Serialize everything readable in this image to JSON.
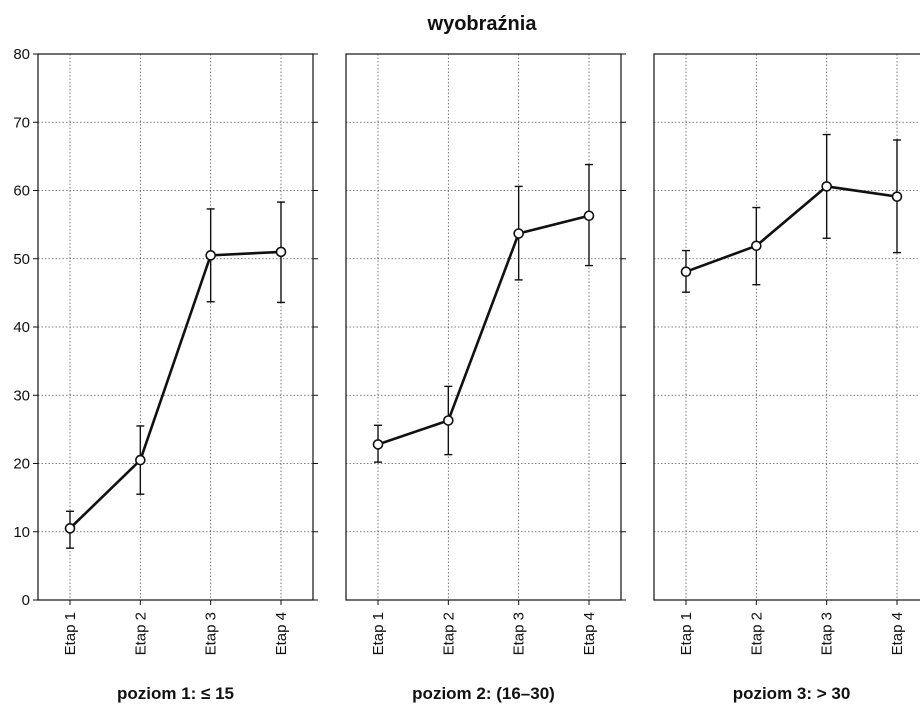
{
  "chart_data": {
    "type": "line",
    "title": "wyobraźnia",
    "ylim": [
      0,
      80
    ],
    "yticks": [
      0,
      10,
      20,
      30,
      40,
      50,
      60,
      70,
      80
    ],
    "grid": true,
    "categories": [
      "Etap 1",
      "Etap 2",
      "Etap 3",
      "Etap 4"
    ],
    "panels": [
      {
        "label": "poziom 1: ≤ 15",
        "values": [
          10.5,
          20.5,
          50.5,
          51.0
        ],
        "err_low": [
          7.6,
          15.5,
          43.7,
          43.6
        ],
        "err_high": [
          13.0,
          25.5,
          57.3,
          58.3
        ]
      },
      {
        "label": "poziom 2: (16–30)",
        "values": [
          22.8,
          26.3,
          53.7,
          56.3
        ],
        "err_low": [
          20.2,
          21.3,
          46.9,
          49.0
        ],
        "err_high": [
          25.6,
          31.3,
          60.6,
          63.8
        ]
      },
      {
        "label": "poziom 3: > 30",
        "values": [
          48.1,
          51.9,
          60.6,
          59.1
        ],
        "err_low": [
          45.1,
          46.2,
          53.0,
          50.9
        ],
        "err_high": [
          51.2,
          57.5,
          68.2,
          67.4
        ]
      }
    ]
  }
}
